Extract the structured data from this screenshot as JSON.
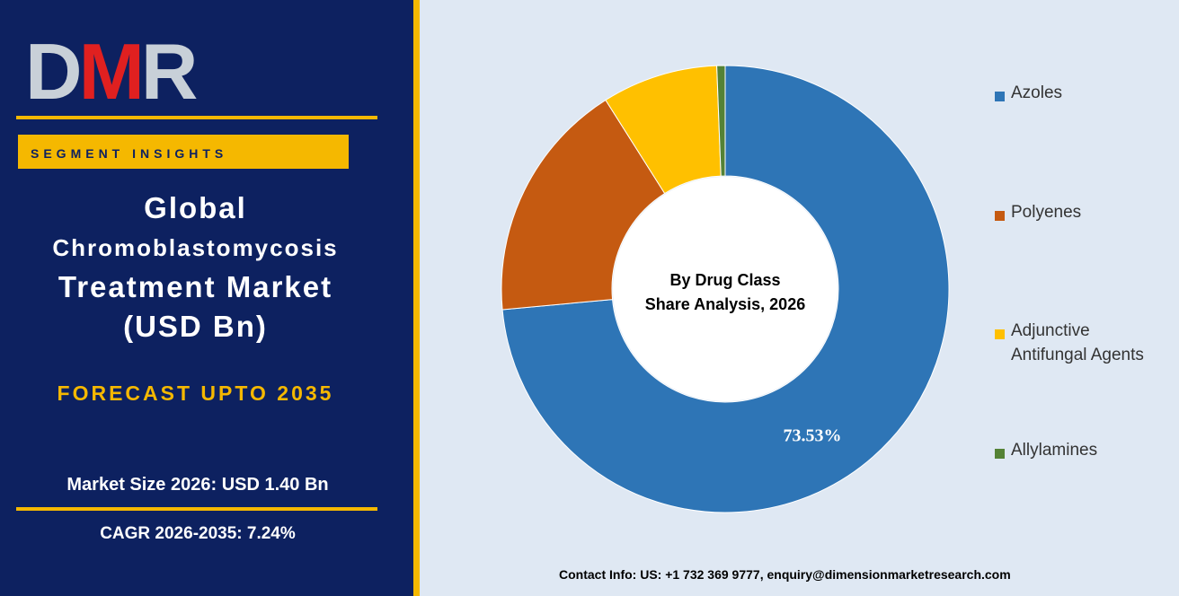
{
  "logo": {
    "text": "DMR",
    "colors": {
      "d": "#c8d0d8",
      "m": "#e02020",
      "r": "#c8d0d8"
    }
  },
  "segment_tag": "SEGMENT INSIGHTS",
  "title": {
    "line1": "Global",
    "line2": "Chromoblastomycosis",
    "line3": "Treatment Market",
    "line4": "(USD Bn)"
  },
  "forecast": "FORECAST UPTO 2035",
  "market_size": "Market Size 2026: USD 1.40  Bn",
  "cagr": "CAGR 2026-2035: 7.24%",
  "contact": "Contact Info: US: +1 732 369 9777, enquiry@dimensionmarketresearch.com",
  "colors": {
    "navy": "#0d2160",
    "gold": "#f5b800",
    "background": "#dfe8f3"
  },
  "chart_data": {
    "type": "pie",
    "center_label": [
      "By Drug Class",
      "Share Analysis, 2026"
    ],
    "series": [
      {
        "name": "Azoles",
        "value": 73.53,
        "color": "#2e75b6",
        "label": "73.53%"
      },
      {
        "name": "Polyenes",
        "value": 17.5,
        "color": "#c55a11",
        "label": ""
      },
      {
        "name": "Adjunctive Antifungal Agents",
        "value": 8.37,
        "color": "#ffc000",
        "label": ""
      },
      {
        "name": "Allylamines",
        "value": 0.6,
        "color": "#548235",
        "label": ""
      }
    ],
    "legend_position": "right"
  }
}
